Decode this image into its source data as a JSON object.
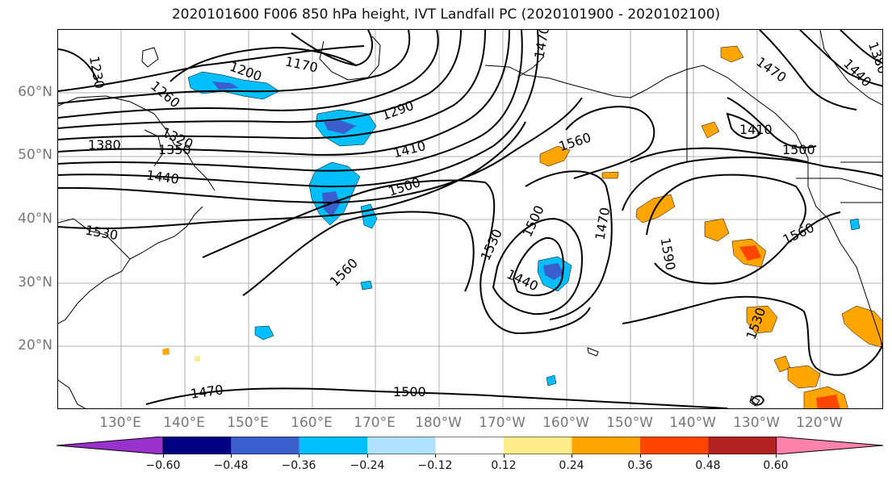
{
  "title": "2020101600 F006 850 hPa height, IVT Landfall PC (2020101900 - 2020102100)",
  "axes": {
    "lat_labels": [
      "60°N",
      "50°N",
      "40°N",
      "30°N",
      "20°N"
    ],
    "lon_labels": [
      "130°E",
      "140°E",
      "150°E",
      "160°E",
      "170°E",
      "180°W",
      "170°W",
      "160°W",
      "150°W",
      "140°W",
      "130°W",
      "120°W"
    ]
  },
  "contour_labels": [
    "1230",
    "1200",
    "1170",
    "1260",
    "1290",
    "1320",
    "1350",
    "1380",
    "1410",
    "1440",
    "1500",
    "1530",
    "1560",
    "1470",
    "1500",
    "1440",
    "1530",
    "1470",
    "1560",
    "1590",
    "1410",
    "1470",
    "1440",
    "1380",
    "1500",
    "1530",
    "1560",
    "1470",
    "1500"
  ],
  "colorbar": {
    "ticks": [
      "−0.60",
      "−0.48",
      "−0.36",
      "−0.24",
      "−0.12",
      "0.12",
      "0.24",
      "0.36",
      "0.48",
      "0.60"
    ],
    "colors": [
      "#9932CC",
      "#000080",
      "#3A5FCD",
      "#00BFFF",
      "#B0E2FF",
      "#FFFFFF",
      "#FFEC8B",
      "#FFA500",
      "#FF4500",
      "#B22222",
      "#FF82AB"
    ]
  }
}
